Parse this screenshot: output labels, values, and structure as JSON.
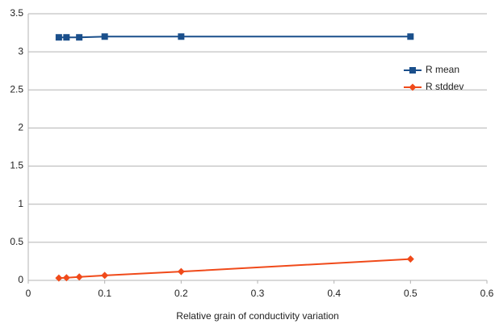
{
  "chart_data": {
    "type": "line",
    "x_label": "Relative grain of conductivity variation",
    "x": [
      0.04,
      0.05,
      0.0667,
      0.1,
      0.2,
      0.5
    ],
    "series": [
      {
        "name": "R mean",
        "color": "#1a4f8b",
        "marker": "square",
        "values": [
          3.19,
          3.19,
          3.19,
          3.2,
          3.2,
          3.2
        ]
      },
      {
        "name": "R stddev",
        "color": "#f04a1a",
        "marker": "diamond",
        "values": [
          0.03,
          0.035,
          0.045,
          0.065,
          0.115,
          0.28
        ]
      }
    ],
    "xlim": [
      0,
      0.6
    ],
    "xticks": [
      0,
      0.1,
      0.2,
      0.3,
      0.4,
      0.5,
      0.6
    ],
    "ylim": [
      0,
      3.5
    ],
    "yticks": [
      0,
      0.5,
      1,
      1.5,
      2,
      2.5,
      3,
      3.5
    ],
    "grid": true,
    "legend": "right"
  }
}
